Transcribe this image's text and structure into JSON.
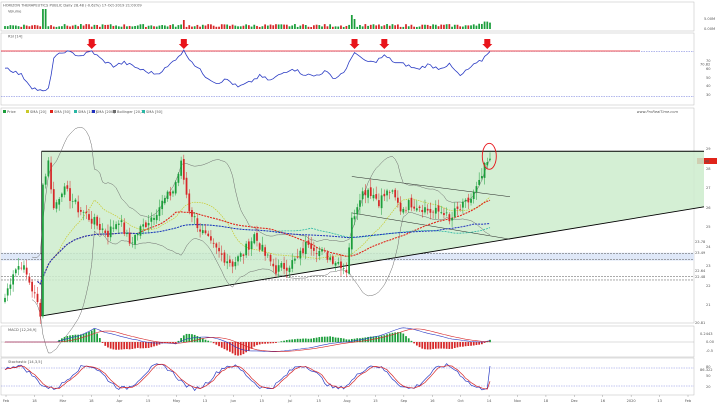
{
  "header": {
    "title": "HORIZON THERAPEUTICS PUBLIC Daily 28.48 (-0.62%) 17-Oct-2019 21:09:09",
    "site": "www.ProRealTime.com"
  },
  "colors": {
    "up": "#1b9e3b",
    "down": "#d62728",
    "triangle_fill": "#cdeccd",
    "rsi": "#2b3cc4",
    "marker": "#e8141b",
    "sma20": "#c9c92a",
    "sma50": "#e0241a",
    "sma100": "#29b7a4",
    "sma200": "#1f2fbf",
    "bollinger": "#6b6b6b",
    "macd_line": "#2b3cc4",
    "macd_signal": "#d62728",
    "stoch_k": "#2b3cc4",
    "stoch_d": "#d62728"
  },
  "chart_data": [
    {
      "type": "bar",
      "panel": "volume",
      "label": "Volume",
      "y_tick_labels": [
        "5.00M",
        "0.00M"
      ],
      "last_value_label": "0.00M",
      "bar_count": 180,
      "bars_comment_free": true
    },
    {
      "type": "line",
      "panel": "rsi",
      "label": "RSI [14]",
      "levels": [
        70,
        30
      ],
      "y_tick_labels": [
        "70",
        "60",
        "50",
        "40",
        "30"
      ],
      "last_value_label": "70.82",
      "arrow_markers_at_bar": [
        32,
        66,
        129,
        140,
        178
      ],
      "anchors": [
        [
          0,
          56
        ],
        [
          6,
          49
        ],
        [
          10,
          38
        ],
        [
          14,
          34
        ],
        [
          16,
          36
        ],
        [
          18,
          64
        ],
        [
          22,
          70
        ],
        [
          28,
          66
        ],
        [
          32,
          70
        ],
        [
          36,
          62
        ],
        [
          40,
          57
        ],
        [
          44,
          60
        ],
        [
          48,
          56
        ],
        [
          52,
          52
        ],
        [
          56,
          50
        ],
        [
          60,
          56
        ],
        [
          64,
          66
        ],
        [
          66,
          70
        ],
        [
          70,
          58
        ],
        [
          74,
          48
        ],
        [
          78,
          42
        ],
        [
          82,
          45
        ],
        [
          86,
          38
        ],
        [
          90,
          42
        ],
        [
          94,
          48
        ],
        [
          98,
          44
        ],
        [
          102,
          50
        ],
        [
          106,
          55
        ],
        [
          110,
          50
        ],
        [
          114,
          48
        ],
        [
          118,
          52
        ],
        [
          122,
          46
        ],
        [
          126,
          54
        ],
        [
          129,
          70
        ],
        [
          132,
          62
        ],
        [
          136,
          60
        ],
        [
          140,
          66
        ],
        [
          144,
          60
        ],
        [
          148,
          58
        ],
        [
          152,
          54
        ],
        [
          156,
          58
        ],
        [
          160,
          55
        ],
        [
          164,
          58
        ],
        [
          168,
          48
        ],
        [
          172,
          56
        ],
        [
          176,
          62
        ],
        [
          179,
          71
        ]
      ]
    },
    {
      "type": "candlestick",
      "panel": "price",
      "legend": [
        "Price",
        "SMA [20]",
        "SMA [50]",
        "SMA [100]",
        "SMA [200]",
        "Bollinger [20,2]",
        "SMA [50]"
      ],
      "y_tick_labels": [
        "29",
        "28",
        "27",
        "26",
        "25",
        "24",
        "23",
        "22",
        "21"
      ],
      "last_price_label": "28.48",
      "level_labels": [
        "23.78",
        "23.49",
        "22.64",
        "22.48",
        "20.81"
      ],
      "x_tick_labels": [
        "Feb",
        "18",
        "Mar",
        "18",
        "Apr",
        "15",
        "May",
        "13",
        "Jun",
        "15",
        "Jul",
        "15",
        "Aug",
        "15",
        "Sep",
        "16",
        "Oct",
        "14",
        "Nov",
        "18",
        "Dec",
        "16",
        "2020",
        "13",
        "Feb"
      ],
      "closes_anchor": [
        [
          0,
          21.6
        ],
        [
          3,
          22.9
        ],
        [
          6,
          23.3
        ],
        [
          9,
          22.4
        ],
        [
          12,
          21.3
        ],
        [
          13,
          20.9
        ],
        [
          14,
          27.2
        ],
        [
          16,
          28.3
        ],
        [
          18,
          26.0
        ],
        [
          21,
          27.0
        ],
        [
          24,
          26.6
        ],
        [
          27,
          26.0
        ],
        [
          30,
          25.7
        ],
        [
          34,
          25.2
        ],
        [
          38,
          24.8
        ],
        [
          42,
          25.5
        ],
        [
          46,
          24.3
        ],
        [
          50,
          25.0
        ],
        [
          54,
          25.6
        ],
        [
          58,
          26.3
        ],
        [
          62,
          26.9
        ],
        [
          65,
          28.2
        ],
        [
          68,
          26.0
        ],
        [
          72,
          25.0
        ],
        [
          76,
          24.2
        ],
        [
          80,
          23.7
        ],
        [
          84,
          23.3
        ],
        [
          88,
          23.8
        ],
        [
          92,
          24.7
        ],
        [
          96,
          23.7
        ],
        [
          100,
          23.0
        ],
        [
          104,
          23.2
        ],
        [
          108,
          23.5
        ],
        [
          112,
          24.4
        ],
        [
          116,
          23.9
        ],
        [
          120,
          23.6
        ],
        [
          124,
          23.3
        ],
        [
          126,
          23.0
        ],
        [
          128,
          25.4
        ],
        [
          131,
          26.7
        ],
        [
          134,
          27.0
        ],
        [
          138,
          26.4
        ],
        [
          142,
          26.9
        ],
        [
          146,
          26.0
        ],
        [
          150,
          26.3
        ],
        [
          154,
          26.1
        ],
        [
          158,
          25.8
        ],
        [
          162,
          25.9
        ],
        [
          164,
          25.3
        ],
        [
          166,
          25.8
        ],
        [
          169,
          26.1
        ],
        [
          172,
          26.5
        ],
        [
          175,
          27.2
        ],
        [
          177,
          28.0
        ],
        [
          179,
          28.48
        ]
      ]
    },
    {
      "type": "bar",
      "panel": "macd",
      "label": "MACD [12,26,9]",
      "y_tick_labels": [
        "0.2443",
        "0.00",
        "-0.5"
      ],
      "last_value_label": "0.2443"
    },
    {
      "type": "line",
      "panel": "stochastic",
      "label": "Stochastic [14,3,5]",
      "y_tick_labels": [
        "80",
        "50",
        "20"
      ],
      "last_value_label": "86.322"
    }
  ]
}
